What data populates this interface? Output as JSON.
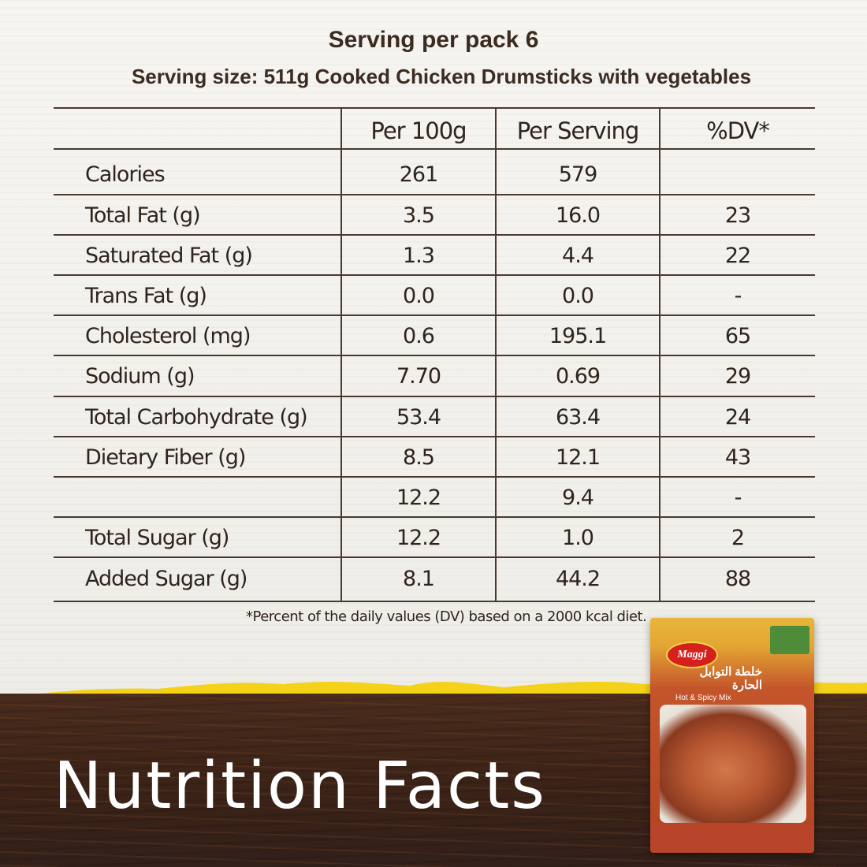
{
  "header": {
    "servings": "Serving per pack 6",
    "serving_size": "Serving size: 511g Cooked Chicken Drumsticks with vegetables"
  },
  "table": {
    "columns": [
      "",
      "Per 100g",
      "Per Serving",
      "%DV*"
    ],
    "rows": [
      {
        "label": "Calories",
        "per100g": "261",
        "perServing": "579",
        "dv": ""
      },
      {
        "label": "Total Fat (g)",
        "per100g": "3.5",
        "perServing": "16.0",
        "dv": "23"
      },
      {
        "label": "Saturated Fat (g)",
        "per100g": "1.3",
        "perServing": "4.4",
        "dv": "22"
      },
      {
        "label": "Trans Fat (g)",
        "per100g": "0.0",
        "perServing": "0.0",
        "dv": "-"
      },
      {
        "label": "Cholesterol (mg)",
        "per100g": "0.6",
        "perServing": "195.1",
        "dv": "65"
      },
      {
        "label": "Sodium (g)",
        "per100g": "7.70",
        "perServing": "0.69",
        "dv": "29"
      },
      {
        "label": "Total Carbohydrate (g)",
        "per100g": "53.4",
        "perServing": "63.4",
        "dv": "24"
      },
      {
        "label": "Dietary Fiber (g)",
        "per100g": "8.5",
        "perServing": "12.1",
        "dv": "43"
      },
      {
        "label": "",
        "per100g": "12.2",
        "perServing": "9.4",
        "dv": "-"
      },
      {
        "label": "Total Sugar (g)",
        "per100g": "12.2",
        "perServing": "1.0",
        "dv": "2"
      },
      {
        "label": "Added Sugar (g)",
        "per100g": "8.1",
        "perServing": "44.2",
        "dv": "88"
      }
    ]
  },
  "footnote": "*Percent of the daily values (DV) based on a 2000 kcal diet.",
  "title": "Nutrition Facts",
  "pack": {
    "brand": "Maggi",
    "arabic_name": "خلطة التوابل الحارة",
    "english_name": "Hot & Spicy Mix"
  },
  "colors": {
    "text": "#2e241c",
    "rule": "#4a3a2e",
    "wood": "#3c2317",
    "accent_yellow": "#f4d21a"
  }
}
